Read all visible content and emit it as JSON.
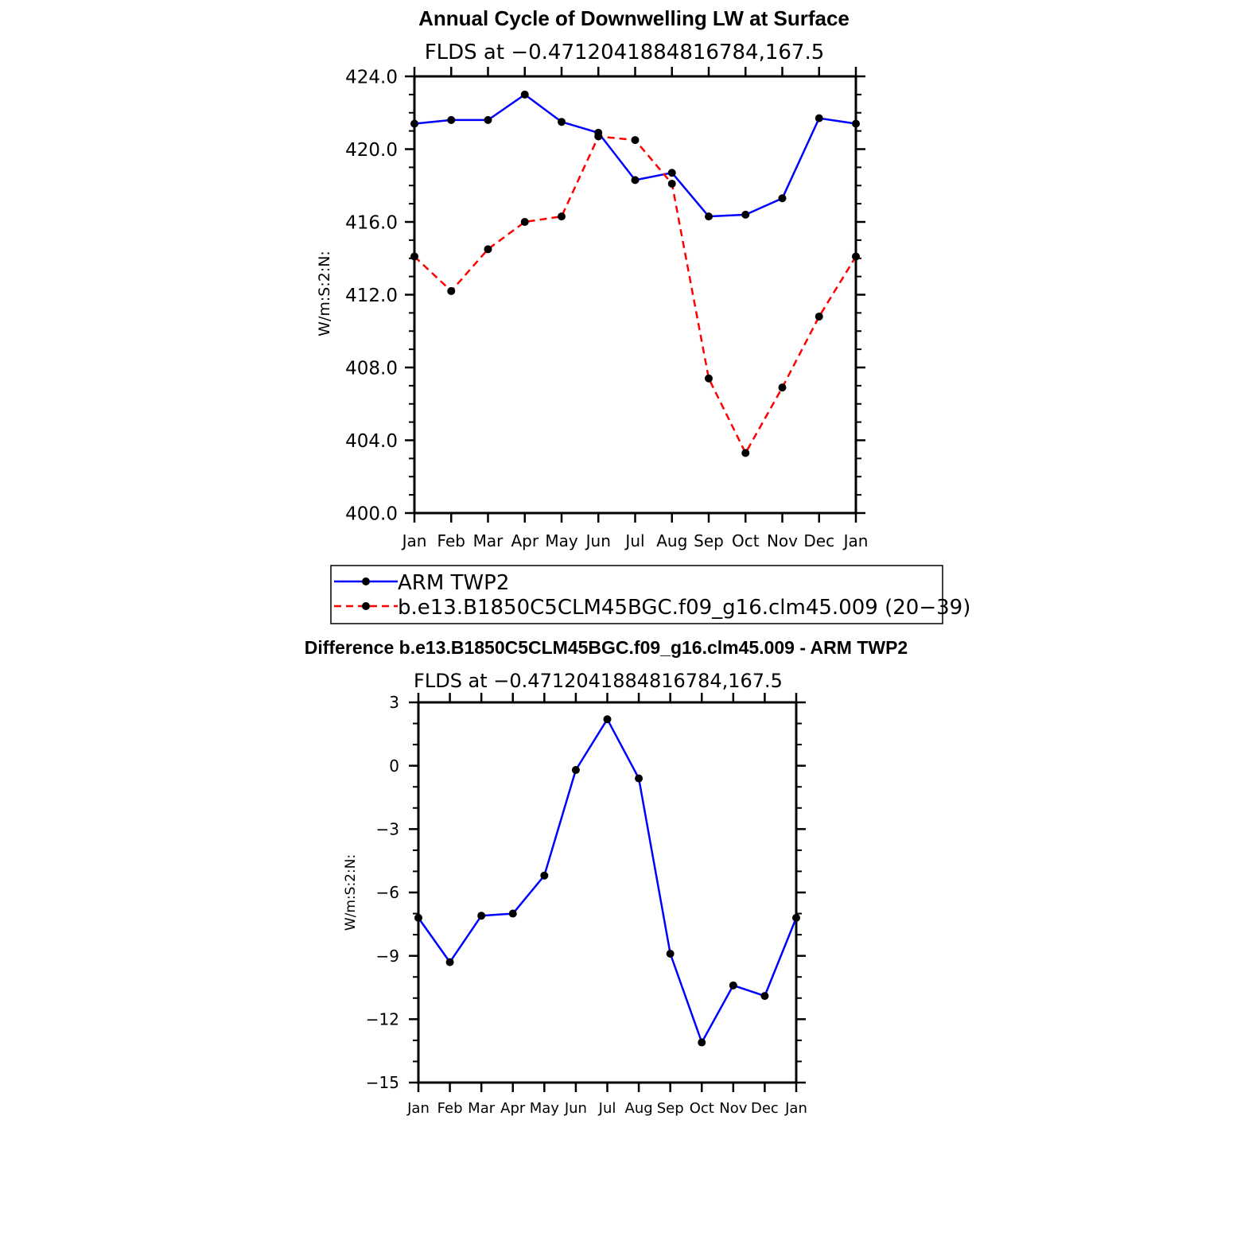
{
  "chart_data": [
    {
      "type": "line",
      "title": "Annual Cycle of Downwelling LW at Surface",
      "subtitle": "FLDS at −0.4712041884816784,167.5",
      "ylabel": "W/m:S:2:N:",
      "categories": [
        "Jan",
        "Feb",
        "Mar",
        "Apr",
        "May",
        "Jun",
        "Jul",
        "Aug",
        "Sep",
        "Oct",
        "Nov",
        "Dec",
        "Jan"
      ],
      "ylim": [
        400,
        424
      ],
      "yticks": [
        400,
        404,
        408,
        412,
        416,
        420,
        424
      ],
      "ytick_labels": [
        "400.0",
        "404.0",
        "408.0",
        "412.0",
        "416.0",
        "420.0",
        "424.0"
      ],
      "series": [
        {
          "name": "ARM TWP2",
          "color": "#0000ff",
          "style": "solid",
          "values": [
            421.4,
            421.6,
            421.6,
            423.0,
            421.5,
            420.9,
            418.3,
            418.7,
            416.3,
            416.4,
            417.3,
            421.7,
            421.4
          ]
        },
        {
          "name": "b.e13.B1850C5CLM45BGC.f09_g16.clm45.009 (20−39)",
          "color": "#ff0000",
          "style": "dashed",
          "values": [
            414.1,
            412.2,
            414.5,
            416.0,
            416.3,
            420.7,
            420.5,
            418.1,
            407.4,
            403.3,
            406.9,
            410.8,
            414.1
          ]
        }
      ]
    },
    {
      "type": "line",
      "title": "Difference b.e13.B1850C5CLM45BGC.f09_g16.clm45.009 - ARM TWP2",
      "subtitle": "FLDS at −0.4712041884816784,167.5",
      "ylabel": "W/m:S:2:N:",
      "categories": [
        "Jan",
        "Feb",
        "Mar",
        "Apr",
        "May",
        "Jun",
        "Jul",
        "Aug",
        "Sep",
        "Oct",
        "Nov",
        "Dec",
        "Jan"
      ],
      "ylim": [
        -15,
        3
      ],
      "yticks": [
        -15,
        -12,
        -9,
        -6,
        -3,
        0,
        3
      ],
      "ytick_labels": [
        "−15",
        "−12",
        "−9",
        "−6",
        "−3",
        "0",
        "3"
      ],
      "series": [
        {
          "name": "Difference",
          "color": "#0000ff",
          "style": "solid",
          "values": [
            -7.2,
            -9.3,
            -7.1,
            -7.0,
            -5.2,
            -0.2,
            2.2,
            -0.6,
            -8.9,
            -13.1,
            -10.4,
            -10.9,
            -7.2
          ]
        }
      ]
    }
  ]
}
